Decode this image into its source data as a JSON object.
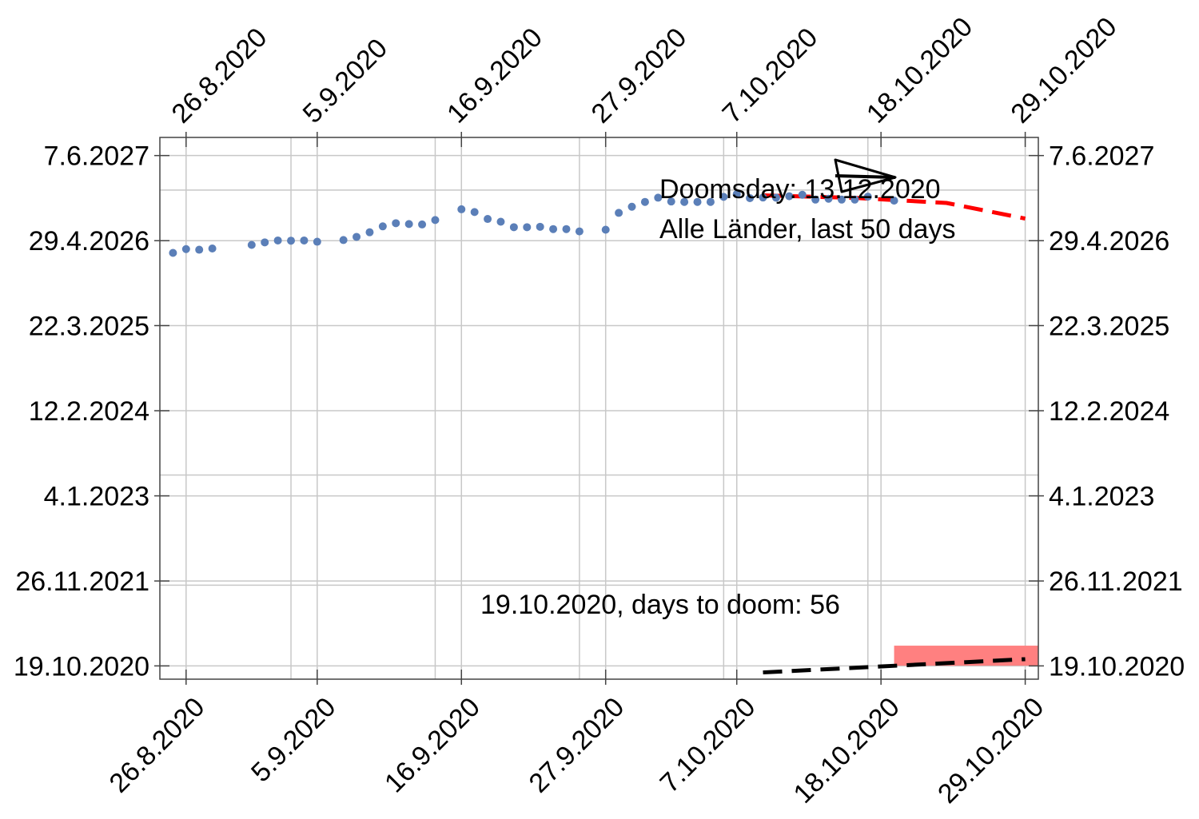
{
  "chart_data": {
    "type": "scatter",
    "x_axis": {
      "unit": "date",
      "range": [
        "2020-08-24",
        "2020-10-30"
      ],
      "ticks": [
        {
          "date": "2020-08-26",
          "label": "26.8.2020"
        },
        {
          "date": "2020-09-05",
          "label": "5.9.2020"
        },
        {
          "date": "2020-09-16",
          "label": "16.9.2020"
        },
        {
          "date": "2020-09-27",
          "label": "27.9.2020"
        },
        {
          "date": "2020-10-07",
          "label": "7.10.2020"
        },
        {
          "date": "2020-10-18",
          "label": "18.10.2020"
        },
        {
          "date": "2020-10-29",
          "label": "29.10.2020"
        }
      ],
      "grid_dates": [
        "2020-09-03",
        "2020-09-14",
        "2020-09-25",
        "2020-10-06",
        "2020-10-17"
      ]
    },
    "y_axis": {
      "unit": "date",
      "range": [
        "2020-08-17",
        "2027-09-01"
      ],
      "ticks": [
        {
          "date": "2020-10-19",
          "label": "19.10.2020"
        },
        {
          "date": "2021-11-26",
          "label": "26.11.2021"
        },
        {
          "date": "2023-01-04",
          "label": "4.1.2023"
        },
        {
          "date": "2024-02-12",
          "label": "12.2.2024"
        },
        {
          "date": "2025-03-22",
          "label": "22.3.2025"
        },
        {
          "date": "2026-04-29",
          "label": "29.4.2026"
        },
        {
          "date": "2027-06-07",
          "label": "7.6.2027"
        }
      ],
      "grid_dates": [
        "2021-11-06",
        "2023-04-13",
        "2026-12-25"
      ]
    },
    "series": [
      {
        "color": "#5b7fb8",
        "points": [
          [
            "2020-08-25",
            "2026-03-02"
          ],
          [
            "2020-08-26",
            "2026-03-20"
          ],
          [
            "2020-08-27",
            "2026-03-17"
          ],
          [
            "2020-08-28",
            "2026-03-23"
          ],
          [
            "2020-08-31",
            "2026-04-09"
          ],
          [
            "2020-09-01",
            "2026-04-21"
          ],
          [
            "2020-09-02",
            "2026-04-30"
          ],
          [
            "2020-09-03",
            "2026-04-29"
          ],
          [
            "2020-09-04",
            "2026-04-30"
          ],
          [
            "2020-09-05",
            "2026-04-24"
          ],
          [
            "2020-09-07",
            "2026-05-02"
          ],
          [
            "2020-09-08",
            "2026-05-17"
          ],
          [
            "2020-09-09",
            "2026-06-08"
          ],
          [
            "2020-09-10",
            "2026-07-06"
          ],
          [
            "2020-09-11",
            "2026-07-21"
          ],
          [
            "2020-09-12",
            "2026-07-17"
          ],
          [
            "2020-09-13",
            "2026-07-15"
          ],
          [
            "2020-09-14",
            "2026-08-05"
          ],
          [
            "2020-09-16",
            "2026-09-25"
          ],
          [
            "2020-09-17",
            "2026-09-12"
          ],
          [
            "2020-09-18",
            "2026-08-10"
          ],
          [
            "2020-09-19",
            "2026-07-28"
          ],
          [
            "2020-09-20",
            "2026-07-02"
          ],
          [
            "2020-09-21",
            "2026-07-02"
          ],
          [
            "2020-09-22",
            "2026-07-04"
          ],
          [
            "2020-09-23",
            "2026-06-23"
          ],
          [
            "2020-09-24",
            "2026-06-23"
          ],
          [
            "2020-09-25",
            "2026-06-12"
          ],
          [
            "2020-09-27",
            "2026-06-20"
          ],
          [
            "2020-09-28",
            "2026-09-08"
          ],
          [
            "2020-09-29",
            "2026-10-07"
          ],
          [
            "2020-09-30",
            "2026-10-30"
          ],
          [
            "2020-10-01",
            "2026-11-19"
          ],
          [
            "2020-10-02",
            "2026-11-01"
          ],
          [
            "2020-10-03",
            "2026-10-30"
          ],
          [
            "2020-10-04",
            "2026-10-30"
          ],
          [
            "2020-10-05",
            "2026-10-30"
          ],
          [
            "2020-10-06",
            "2026-11-23"
          ],
          [
            "2020-10-07",
            "2026-12-06"
          ],
          [
            "2020-10-08",
            "2026-11-17"
          ],
          [
            "2020-10-09",
            "2026-11-20"
          ],
          [
            "2020-10-10",
            "2026-11-19"
          ],
          [
            "2020-10-11",
            "2026-11-26"
          ],
          [
            "2020-10-12",
            "2026-12-03"
          ],
          [
            "2020-10-13",
            "2026-11-10"
          ],
          [
            "2020-10-14",
            "2026-11-14"
          ],
          [
            "2020-10-15",
            "2026-11-10"
          ],
          [
            "2020-10-16",
            "2026-11-10"
          ],
          [
            "2020-10-17",
            "2026-11-24"
          ],
          [
            "2020-10-19",
            "2026-11-05"
          ]
        ]
      },
      {
        "color": "#ff0000",
        "style": "dashed",
        "points": [
          [
            "2020-10-09",
            "2026-11-30"
          ],
          [
            "2020-10-16",
            "2026-11-18"
          ],
          [
            "2020-10-23",
            "2026-10-25"
          ],
          [
            "2020-10-29",
            "2026-08-12"
          ]
        ]
      },
      {
        "color": "#000000",
        "style": "dashed",
        "points": [
          [
            "2020-10-09",
            "2020-09-18"
          ],
          [
            "2020-10-29",
            "2020-11-20"
          ]
        ]
      }
    ],
    "doom_band": {
      "color": "#ff8080",
      "x_start": "2020-10-19",
      "x_end": "2020-10-31",
      "y_start": "2020-10-20",
      "y_end": "2021-01-23"
    },
    "annotations": {
      "doomsday_line1": "Doomsday: 13.12.2020",
      "doomsday_line2": "Alle Länder, last 50 days",
      "countdown": "19.10.2020, days to doom: 56"
    },
    "grid": true,
    "frame_ticks": "all four sides"
  }
}
